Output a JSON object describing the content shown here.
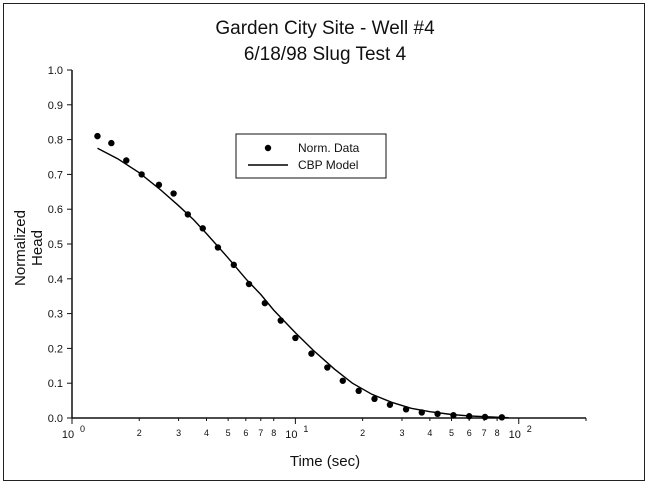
{
  "chart_data": {
    "type": "scatter",
    "title": "Garden City Site - Well #4",
    "subtitle": "6/18/98 Slug Test 4",
    "xlabel": "Time (sec)",
    "ylabel": "Normalized Head",
    "x_scale": "log",
    "xlim": [
      1,
      200
    ],
    "ylim": [
      0,
      1
    ],
    "y_ticks": [
      "0.0",
      "0.1",
      "0.2",
      "0.3",
      "0.4",
      "0.5",
      "0.6",
      "0.7",
      "0.8",
      "0.9",
      "1.0"
    ],
    "x_major_ticks": [
      {
        "value": 1,
        "base": "10",
        "exp": "0"
      },
      {
        "value": 10,
        "base": "10",
        "exp": "1"
      },
      {
        "value": 100,
        "base": "10",
        "exp": "2"
      }
    ],
    "x_minor_labels": [
      "2",
      "3",
      "4",
      "5",
      "6",
      "7",
      "8"
    ],
    "grid": false,
    "legend_position": "upper-center",
    "series": [
      {
        "name": "Norm. Data",
        "style": "markers",
        "color": "#000000",
        "points": [
          [
            1.3,
            0.81
          ],
          [
            1.5,
            0.79
          ],
          [
            1.75,
            0.74
          ],
          [
            2.05,
            0.7
          ],
          [
            2.45,
            0.67
          ],
          [
            2.85,
            0.645
          ],
          [
            3.3,
            0.585
          ],
          [
            3.85,
            0.545
          ],
          [
            4.5,
            0.49
          ],
          [
            5.3,
            0.44
          ],
          [
            6.2,
            0.385
          ],
          [
            7.3,
            0.33
          ],
          [
            8.6,
            0.28
          ],
          [
            10.0,
            0.23
          ],
          [
            11.8,
            0.185
          ],
          [
            13.9,
            0.145
          ],
          [
            16.3,
            0.107
          ],
          [
            19.2,
            0.078
          ],
          [
            22.6,
            0.055
          ],
          [
            26.5,
            0.038
          ],
          [
            31.3,
            0.025
          ],
          [
            36.8,
            0.016
          ],
          [
            43.3,
            0.012
          ],
          [
            51.0,
            0.008
          ],
          [
            60.0,
            0.005
          ],
          [
            70.6,
            0.003
          ],
          [
            84.0,
            0.002
          ]
        ]
      },
      {
        "name": "CBP Model",
        "style": "line",
        "color": "#000000",
        "points": [
          [
            1.3,
            0.775
          ],
          [
            1.6,
            0.745
          ],
          [
            2.0,
            0.705
          ],
          [
            2.5,
            0.655
          ],
          [
            3.0,
            0.61
          ],
          [
            3.5,
            0.57
          ],
          [
            4.0,
            0.53
          ],
          [
            5.0,
            0.46
          ],
          [
            6.0,
            0.4
          ],
          [
            7.0,
            0.355
          ],
          [
            8.0,
            0.31
          ],
          [
            10.0,
            0.245
          ],
          [
            12.0,
            0.195
          ],
          [
            15.0,
            0.14
          ],
          [
            18.0,
            0.1
          ],
          [
            22.0,
            0.068
          ],
          [
            27.0,
            0.045
          ],
          [
            33.0,
            0.028
          ],
          [
            40.0,
            0.018
          ],
          [
            50.0,
            0.01
          ],
          [
            60.0,
            0.006
          ],
          [
            75.0,
            0.003
          ],
          [
            90.0,
            0.001
          ]
        ]
      }
    ]
  }
}
